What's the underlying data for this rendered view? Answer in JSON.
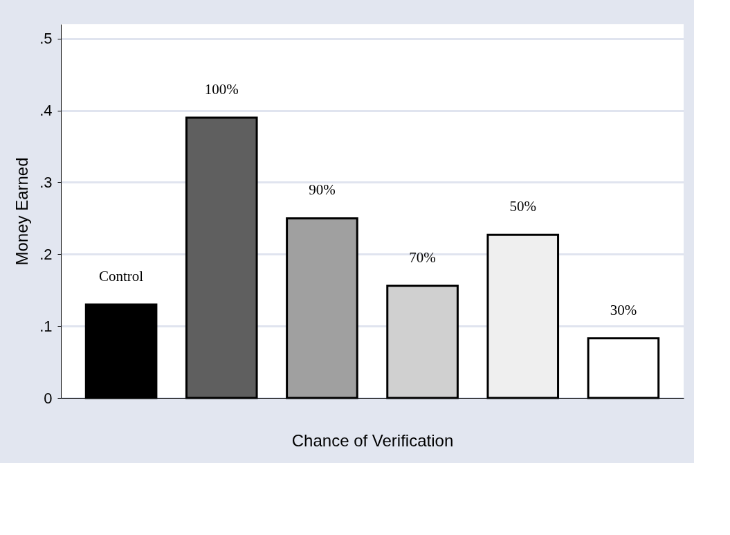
{
  "chart_data": {
    "type": "bar",
    "xlabel": "Chance of Verification",
    "ylabel": "Money Earned",
    "categories": [
      "Control",
      "100%",
      "90%",
      "70%",
      "50%",
      "30%"
    ],
    "values": [
      0.13,
      0.39,
      0.25,
      0.156,
      0.227,
      0.083
    ],
    "colors": [
      "#000000",
      "#5f5f5f",
      "#a0a0a0",
      "#d0d0d0",
      "#efefef",
      "#ffffff"
    ],
    "ylim": [
      0,
      0.52
    ],
    "yticks": [
      {
        "value": 0,
        "label": "0"
      },
      {
        "value": 0.1,
        "label": ".1"
      },
      {
        "value": 0.2,
        "label": ".2"
      },
      {
        "value": 0.3,
        "label": ".3"
      },
      {
        "value": 0.4,
        "label": ".4"
      },
      {
        "value": 0.5,
        "label": ".5"
      }
    ],
    "grid": "y",
    "tick_labels": "y"
  }
}
